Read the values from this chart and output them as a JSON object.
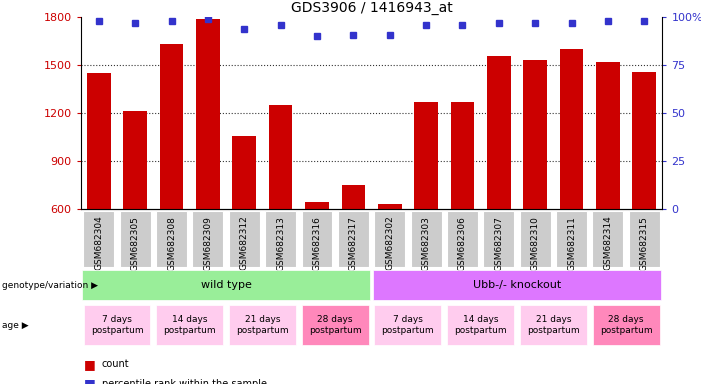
{
  "title": "GDS3906 / 1416943_at",
  "samples": [
    "GSM682304",
    "GSM682305",
    "GSM682308",
    "GSM682309",
    "GSM682312",
    "GSM682313",
    "GSM682316",
    "GSM682317",
    "GSM682302",
    "GSM682303",
    "GSM682306",
    "GSM682307",
    "GSM682310",
    "GSM682311",
    "GSM682314",
    "GSM682315"
  ],
  "counts": [
    1450,
    1215,
    1630,
    1790,
    1060,
    1250,
    645,
    750,
    635,
    1270,
    1270,
    1560,
    1530,
    1600,
    1520,
    1460
  ],
  "percentiles": [
    98,
    97,
    98,
    99,
    94,
    96,
    90,
    91,
    91,
    96,
    96,
    97,
    97,
    97,
    98,
    98
  ],
  "ylim_left": [
    600,
    1800
  ],
  "ylim_right": [
    0,
    100
  ],
  "yticks_left": [
    600,
    900,
    1200,
    1500,
    1800
  ],
  "yticks_right": [
    0,
    25,
    50,
    75,
    100
  ],
  "bar_color": "#cc0000",
  "marker_color": "#3333cc",
  "genotype_groups": [
    {
      "label": "wild type",
      "start": 0,
      "end": 8,
      "color": "#99ee99"
    },
    {
      "label": "Ubb-/- knockout",
      "start": 8,
      "end": 16,
      "color": "#dd77ff"
    }
  ],
  "age_groups": [
    {
      "label": "7 days\npostpartum",
      "start": 0,
      "end": 2,
      "color": "#ffccee"
    },
    {
      "label": "14 days\npostpartum",
      "start": 2,
      "end": 4,
      "color": "#ffccee"
    },
    {
      "label": "21 days\npostpartum",
      "start": 4,
      "end": 6,
      "color": "#ffccee"
    },
    {
      "label": "28 days\npostpartum",
      "start": 6,
      "end": 8,
      "color": "#ff88bb"
    },
    {
      "label": "7 days\npostpartum",
      "start": 8,
      "end": 10,
      "color": "#ffccee"
    },
    {
      "label": "14 days\npostpartum",
      "start": 10,
      "end": 12,
      "color": "#ffccee"
    },
    {
      "label": "21 days\npostpartum",
      "start": 12,
      "end": 14,
      "color": "#ffccee"
    },
    {
      "label": "28 days\npostpartum",
      "start": 14,
      "end": 16,
      "color": "#ff88bb"
    }
  ],
  "background_color": "#ffffff",
  "xtick_bg_color": "#cccccc"
}
